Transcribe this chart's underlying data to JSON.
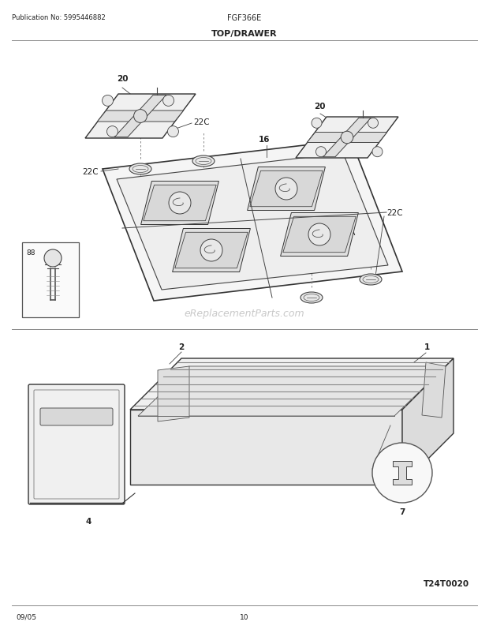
{
  "background_color": "#ffffff",
  "page_width": 6.2,
  "page_height": 8.03,
  "pub_no": "Publication No: 5995446882",
  "model": "FGF366E",
  "section": "TOP/DRAWER",
  "date_code": "09/05",
  "page_num": "10",
  "diagram_code": "T24T0020",
  "text_color": "#222222",
  "line_color": "#444444",
  "watermark": "eReplacementParts.com"
}
